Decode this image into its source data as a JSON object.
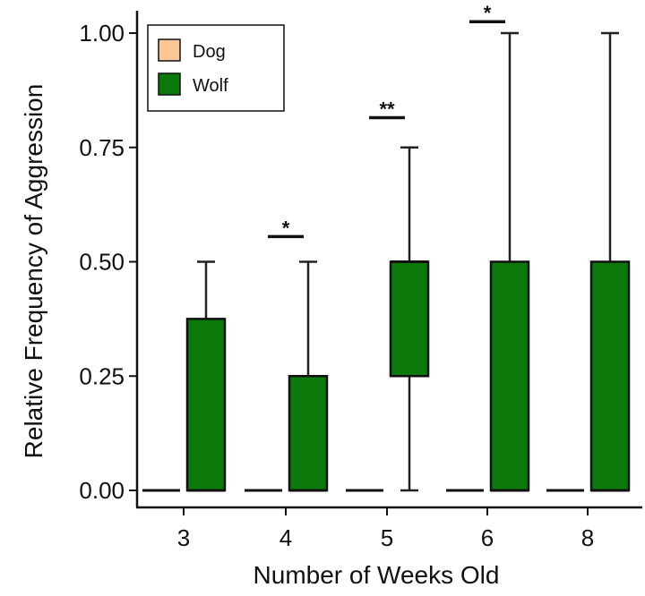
{
  "chart_data": {
    "type": "box",
    "xlabel": "Number of Weeks Old",
    "ylabel": "Relative Frequency of Aggression",
    "categories": [
      "3",
      "4",
      "5",
      "6",
      "8"
    ],
    "ylim": [
      0,
      1.0
    ],
    "yticks": [
      "0.00",
      "0.25",
      "0.50",
      "0.75",
      "1.00"
    ],
    "yticks_values": [
      0,
      0.25,
      0.5,
      0.75,
      1.0
    ],
    "legend": {
      "position": "top-left",
      "entries": [
        {
          "name": "Dog",
          "color": "#fdc896"
        },
        {
          "name": "Wolf",
          "color": "#0b7a0b"
        }
      ]
    },
    "series": [
      {
        "name": "Dog",
        "color": "#fdc896",
        "boxes": [
          {
            "min": 0,
            "q1": 0,
            "median": 0,
            "q3": 0,
            "max": 0
          },
          {
            "min": 0,
            "q1": 0,
            "median": 0,
            "q3": 0,
            "max": 0
          },
          {
            "min": 0,
            "q1": 0,
            "median": 0,
            "q3": 0,
            "max": 0
          },
          {
            "min": 0,
            "q1": 0,
            "median": 0,
            "q3": 0,
            "max": 0
          },
          {
            "min": 0,
            "q1": 0,
            "median": 0,
            "q3": 0,
            "max": 0
          }
        ]
      },
      {
        "name": "Wolf",
        "color": "#0b7a0b",
        "boxes": [
          {
            "min": 0,
            "q1": 0,
            "median": 0,
            "q3": 0.375,
            "max": 0.5
          },
          {
            "min": 0,
            "q1": 0,
            "median": 0,
            "q3": 0.25,
            "max": 0.5
          },
          {
            "min": 0,
            "q1": 0.25,
            "median": 0.5,
            "q3": 0.5,
            "max": 0.75
          },
          {
            "min": 0,
            "q1": 0,
            "median": 0,
            "q3": 0.5,
            "max": 1.0
          },
          {
            "min": 0,
            "q1": 0,
            "median": 0,
            "q3": 0.5,
            "max": 1.0
          }
        ]
      }
    ],
    "significance": [
      {
        "category": "4",
        "label": "*",
        "y": 0.555
      },
      {
        "category": "5",
        "label": "**",
        "y": 0.815
      },
      {
        "category": "6",
        "label": "*",
        "y": 1.025
      }
    ],
    "grid": false
  }
}
